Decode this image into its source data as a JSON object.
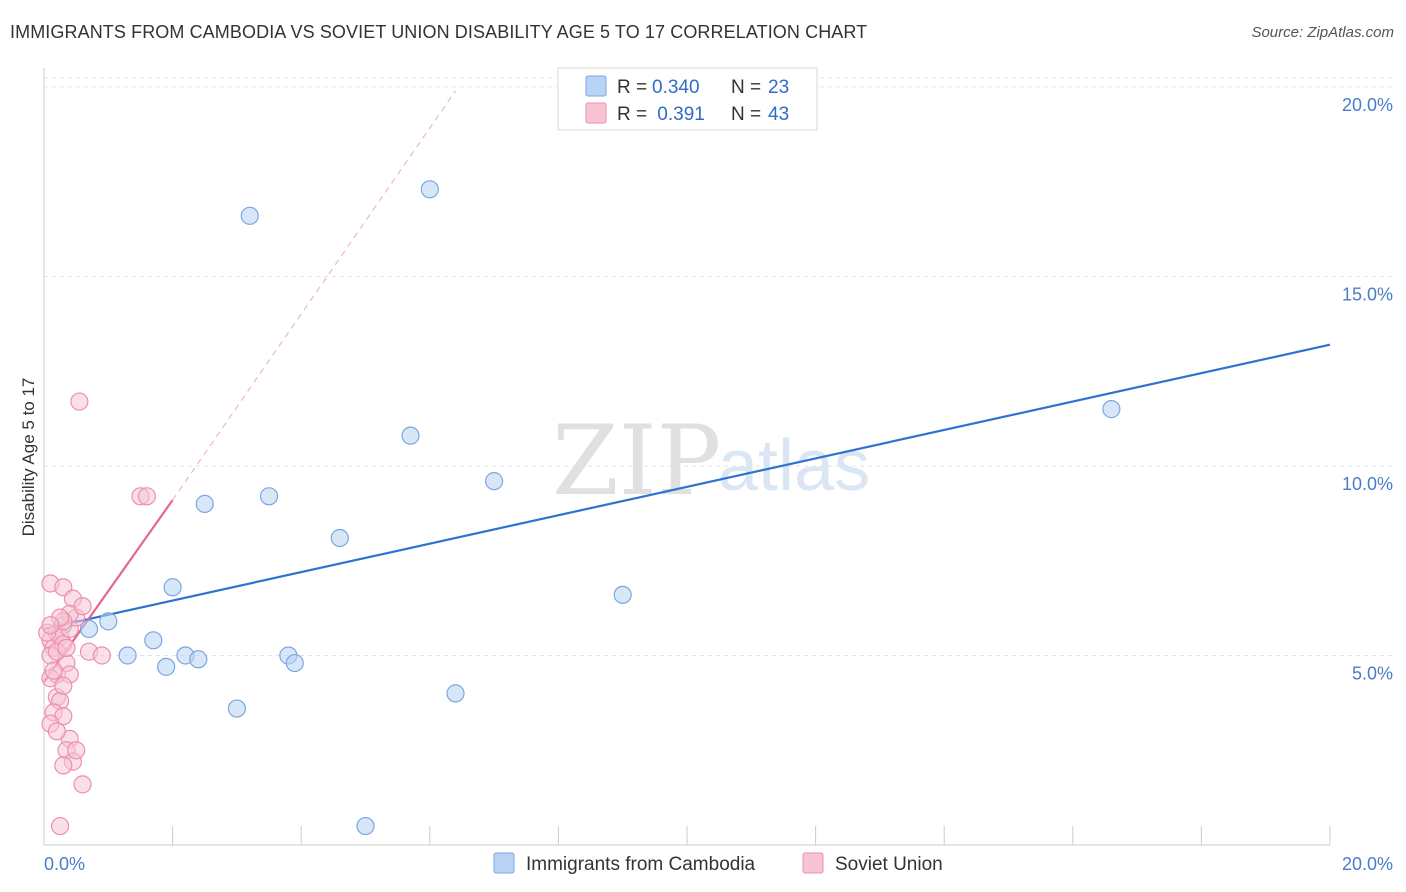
{
  "header": {
    "title": "IMMIGRANTS FROM CAMBODIA VS SOVIET UNION DISABILITY AGE 5 TO 17 CORRELATION CHART",
    "source": "Source: ZipAtlas.com"
  },
  "watermark": {
    "zip": "ZIP",
    "atlas": "atlas"
  },
  "colors": {
    "blue_fill": "#b8d3f3",
    "blue_stroke": "#7aa7e0",
    "blue_line": "#2f73d0",
    "pink_fill": "#f8c4d4",
    "pink_stroke": "#ec8fb0",
    "pink_line": "#e0698f",
    "grid": "#dde3ec",
    "axis_text": "#4a7cc9"
  },
  "legend": {
    "rows": [
      {
        "r_label": "R = ",
        "r_value": "0.340",
        "n_label": "N = ",
        "n_value": "23"
      },
      {
        "r_label": "R = ",
        "r_value": " 0.391",
        "n_label": "N = ",
        "n_value": "43"
      }
    ]
  },
  "bottom_legend": {
    "items": [
      {
        "label": "Immigrants from Cambodia"
      },
      {
        "label": "Soviet Union"
      }
    ]
  },
  "chart_data": {
    "type": "scatter",
    "title": "IMMIGRANTS FROM CAMBODIA VS SOVIET UNION DISABILITY AGE 5 TO 17 CORRELATION CHART",
    "xlabel": "",
    "ylabel": "Disability Age 5 to 17",
    "xlim": [
      0,
      20
    ],
    "ylim": [
      0,
      20.5
    ],
    "x_tick_labels": [
      {
        "value": 0,
        "label": "0.0%"
      },
      {
        "value": 20,
        "label": "20.0%"
      }
    ],
    "y_tick_labels": [
      {
        "value": 5,
        "label": "5.0%"
      },
      {
        "value": 10,
        "label": "10.0%"
      },
      {
        "value": 15,
        "label": "15.0%"
      },
      {
        "value": 20,
        "label": "20.0%"
      }
    ],
    "grid": true,
    "legend_position": "top-center",
    "series": [
      {
        "name": "Immigrants from Cambodia",
        "color_key": "blue",
        "R": 0.34,
        "N": 23,
        "points": [
          [
            0.7,
            5.7
          ],
          [
            1.0,
            5.9
          ],
          [
            1.3,
            5.0
          ],
          [
            1.7,
            5.4
          ],
          [
            1.9,
            4.7
          ],
          [
            2.2,
            5.0
          ],
          [
            2.0,
            6.8
          ],
          [
            2.5,
            9.0
          ],
          [
            2.4,
            4.9
          ],
          [
            3.0,
            3.6
          ],
          [
            3.2,
            16.6
          ],
          [
            3.5,
            9.2
          ],
          [
            3.8,
            5.0
          ],
          [
            3.9,
            4.8
          ],
          [
            4.6,
            8.1
          ],
          [
            5.0,
            0.5
          ],
          [
            5.7,
            10.8
          ],
          [
            6.0,
            17.3
          ],
          [
            6.4,
            4.0
          ],
          [
            7.0,
            9.6
          ],
          [
            9.0,
            6.6
          ],
          [
            16.6,
            11.5
          ],
          [
            0.3,
            5.8
          ]
        ],
        "trend": {
          "x": [
            0,
            20
          ],
          "y": [
            5.7,
            13.2
          ],
          "style": "solid"
        }
      },
      {
        "name": "Soviet Union",
        "color_key": "pink",
        "R": 0.391,
        "N": 43,
        "points": [
          [
            0.1,
            5.4
          ],
          [
            0.15,
            5.2
          ],
          [
            0.2,
            5.6
          ],
          [
            0.1,
            5.0
          ],
          [
            0.25,
            5.5
          ],
          [
            0.3,
            5.3
          ],
          [
            0.2,
            4.5
          ],
          [
            0.35,
            4.8
          ],
          [
            0.4,
            5.7
          ],
          [
            0.1,
            6.9
          ],
          [
            0.3,
            6.8
          ],
          [
            0.45,
            6.5
          ],
          [
            0.5,
            6.0
          ],
          [
            0.4,
            6.1
          ],
          [
            0.6,
            6.3
          ],
          [
            0.7,
            5.1
          ],
          [
            0.2,
            3.9
          ],
          [
            0.25,
            3.8
          ],
          [
            0.15,
            3.5
          ],
          [
            0.3,
            3.4
          ],
          [
            0.1,
            3.2
          ],
          [
            0.4,
            2.8
          ],
          [
            0.35,
            2.5
          ],
          [
            0.45,
            2.2
          ],
          [
            0.3,
            2.1
          ],
          [
            0.6,
            1.6
          ],
          [
            0.25,
            0.5
          ],
          [
            0.55,
            11.7
          ],
          [
            1.5,
            9.2
          ],
          [
            1.6,
            9.2
          ],
          [
            0.9,
            5.0
          ],
          [
            0.1,
            4.4
          ],
          [
            0.2,
            5.1
          ],
          [
            0.3,
            5.9
          ],
          [
            0.05,
            5.6
          ],
          [
            0.35,
            5.2
          ],
          [
            0.15,
            4.6
          ],
          [
            0.25,
            6.0
          ],
          [
            0.4,
            4.5
          ],
          [
            0.1,
            5.8
          ],
          [
            0.2,
            3.0
          ],
          [
            0.5,
            2.5
          ],
          [
            0.3,
            4.2
          ]
        ],
        "trend": {
          "x": [
            0,
            2.0
          ],
          "y": [
            4.3,
            9.1
          ],
          "style": "solid"
        },
        "trend_extension": {
          "x": [
            2.0,
            6.4
          ],
          "y": [
            9.1,
            19.9
          ],
          "style": "dashed"
        }
      }
    ]
  }
}
